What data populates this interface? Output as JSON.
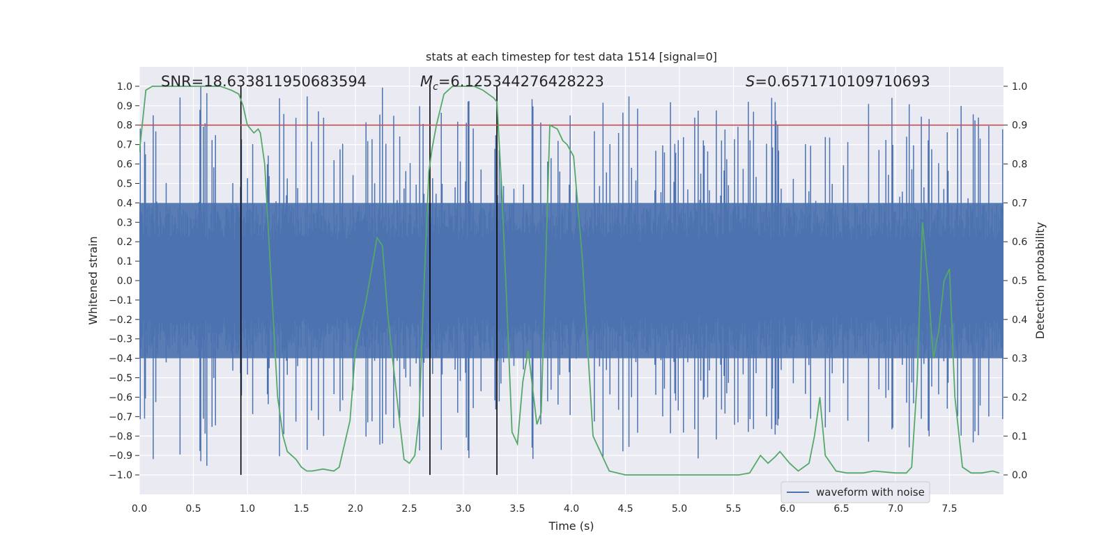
{
  "chart_data": {
    "type": "line",
    "title": "stats at each timestep for test data 1514 [signal=0]",
    "xlabel": "Time (s)",
    "ylabel_left": "Whitened strain",
    "ylabel_right": "Detection probability",
    "xlim": [
      0.0,
      8.0
    ],
    "ylim_left": [
      -1.1,
      1.1
    ],
    "ylim_right": [
      -0.05,
      1.05
    ],
    "x_ticks": [
      "0.0",
      "0.5",
      "1.0",
      "1.5",
      "2.0",
      "2.5",
      "3.0",
      "3.5",
      "4.0",
      "4.5",
      "5.0",
      "5.5",
      "6.0",
      "6.5",
      "7.0",
      "7.5"
    ],
    "y_left_ticks": [
      "1.0",
      "0.9",
      "0.8",
      "0.7",
      "0.6",
      "0.5",
      "0.4",
      "0.3",
      "0.2",
      "0.1",
      "0.0",
      "-0.1",
      "-0.2",
      "-0.3",
      "-0.4",
      "-0.5",
      "-0.6",
      "-0.7",
      "-0.8",
      "-0.9",
      "-1.0"
    ],
    "y_right_ticks": [
      "1.0",
      "0.9",
      "0.8",
      "0.7",
      "0.6",
      "0.5",
      "0.4",
      "0.3",
      "0.2",
      "0.1",
      "0.0"
    ],
    "annotations": {
      "snr": "SNR=18.633811950683594",
      "mc_symbol": "M",
      "mc_subscript": "c",
      "mc_value": "=6.125344276428223",
      "s_symbol": "S",
      "s_value": "=0.6571710109710693"
    },
    "legend": {
      "label": "waveform with noise",
      "position": "lower-right"
    },
    "threshold": {
      "value": 0.9,
      "axis": "right",
      "color": "#c44e52"
    },
    "vertical_lines": [
      0.94,
      2.69,
      3.31
    ],
    "detection_probability": {
      "name": "Detection probability",
      "color": "#55a868",
      "x": [
        0.0,
        0.06,
        0.12,
        0.25,
        0.5,
        0.75,
        0.85,
        0.92,
        0.96,
        1.0,
        1.06,
        1.1,
        1.12,
        1.16,
        1.2,
        1.28,
        1.33,
        1.37,
        1.45,
        1.5,
        1.55,
        1.6,
        1.7,
        1.8,
        1.85,
        1.95,
        2.0,
        2.1,
        2.2,
        2.25,
        2.3,
        2.4,
        2.45,
        2.5,
        2.55,
        2.59,
        2.63,
        2.68,
        2.71,
        2.75,
        2.82,
        2.9,
        3.0,
        3.1,
        3.18,
        3.23,
        3.28,
        3.31,
        3.35,
        3.4,
        3.45,
        3.5,
        3.55,
        3.6,
        3.68,
        3.72,
        3.8,
        3.87,
        3.92,
        3.96,
        4.02,
        4.1,
        4.2,
        4.35,
        4.5,
        4.75,
        5.0,
        5.25,
        5.5,
        5.55,
        5.65,
        5.75,
        5.82,
        5.88,
        5.93,
        6.02,
        6.1,
        6.2,
        6.25,
        6.3,
        6.35,
        6.45,
        6.55,
        6.7,
        6.8,
        7.0,
        7.1,
        7.15,
        7.2,
        7.25,
        7.3,
        7.35,
        7.4,
        7.45,
        7.5,
        7.55,
        7.62,
        7.7,
        7.8,
        7.9,
        7.96
      ],
      "y": [
        0.83,
        0.99,
        1.0,
        1.0,
        1.0,
        1.0,
        0.99,
        0.98,
        0.95,
        0.9,
        0.88,
        0.89,
        0.88,
        0.8,
        0.6,
        0.2,
        0.1,
        0.06,
        0.04,
        0.02,
        0.01,
        0.01,
        0.015,
        0.01,
        0.02,
        0.14,
        0.32,
        0.45,
        0.61,
        0.59,
        0.41,
        0.16,
        0.04,
        0.03,
        0.05,
        0.15,
        0.45,
        0.78,
        0.84,
        0.9,
        0.98,
        1.0,
        1.0,
        1.0,
        0.99,
        0.98,
        0.97,
        0.96,
        0.76,
        0.45,
        0.11,
        0.08,
        0.24,
        0.32,
        0.13,
        0.16,
        0.9,
        0.89,
        0.86,
        0.85,
        0.82,
        0.56,
        0.1,
        0.01,
        0.0,
        0.0,
        0.0,
        0.0,
        0.0,
        0.0,
        0.005,
        0.05,
        0.03,
        0.045,
        0.06,
        0.03,
        0.01,
        0.03,
        0.1,
        0.2,
        0.05,
        0.01,
        0.005,
        0.005,
        0.01,
        0.005,
        0.005,
        0.02,
        0.24,
        0.65,
        0.5,
        0.3,
        0.37,
        0.5,
        0.53,
        0.2,
        0.02,
        0.005,
        0.005,
        0.01,
        0.005
      ]
    },
    "waveform": {
      "name": "waveform with noise",
      "color": "#4c72b0",
      "samples": 1000,
      "core_amplitude": 0.4,
      "spike_max": 0.95,
      "seed": 1514
    }
  }
}
